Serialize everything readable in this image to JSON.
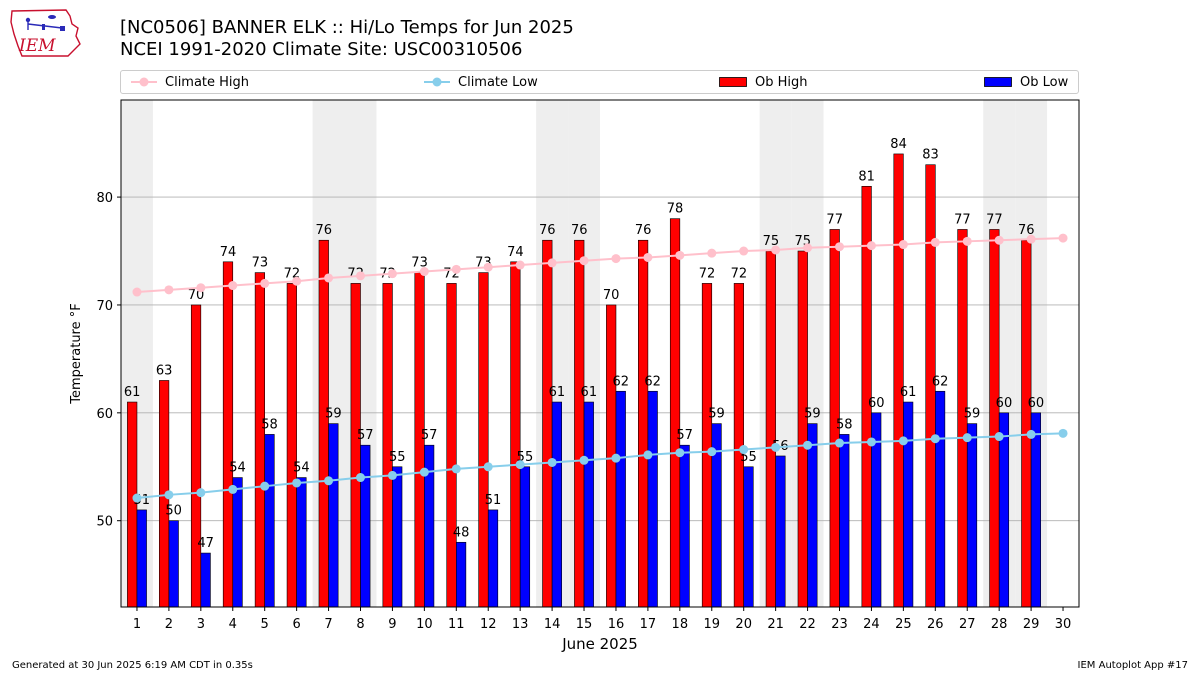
{
  "header": {
    "logo_text": "IEM",
    "title_line1": "[NC0506] BANNER ELK :: Hi/Lo Temps for Jun 2025",
    "title_line2": "NCEI 1991-2020 Climate Site: USC00310506"
  },
  "legend": {
    "climate_high": "Climate High",
    "climate_low": "Climate Low",
    "ob_high": "Ob High",
    "ob_low": "Ob Low"
  },
  "footer": {
    "generated": "Generated at 30 Jun 2025 6:19 AM CDT in 0.35s",
    "app": "IEM Autoplot App #17"
  },
  "colors": {
    "ob_high": "#ff0000",
    "ob_low": "#0000ff",
    "climate_high": "#ffc0cb",
    "climate_low": "#87ceeb",
    "weekend_shade": "#eeeeee"
  },
  "chart_data": {
    "type": "bar",
    "xlabel": "June 2025",
    "ylabel": "Temperature °F",
    "xlim": [
      0.5,
      30.5
    ],
    "ylim": [
      42,
      89
    ],
    "yticks": [
      50,
      60,
      70,
      80
    ],
    "grid": "y",
    "legend_position": "top",
    "categories": [
      "1",
      "2",
      "3",
      "4",
      "5",
      "6",
      "7",
      "8",
      "9",
      "10",
      "11",
      "12",
      "13",
      "14",
      "15",
      "16",
      "17",
      "18",
      "19",
      "20",
      "21",
      "22",
      "23",
      "24",
      "25",
      "26",
      "27",
      "28",
      "29",
      "30"
    ],
    "weekend_days": [
      1,
      7,
      8,
      14,
      15,
      21,
      22,
      28,
      29
    ],
    "series": [
      {
        "name": "Ob High",
        "type": "bar",
        "values": [
          61,
          63,
          70,
          74,
          73,
          72,
          76,
          72,
          72,
          73,
          72,
          73,
          74,
          76,
          76,
          70,
          76,
          78,
          72,
          72,
          75,
          75,
          77,
          81,
          84,
          83,
          77,
          77,
          76,
          null
        ]
      },
      {
        "name": "Ob Low",
        "type": "bar",
        "values": [
          51,
          50,
          47,
          54,
          58,
          54,
          59,
          57,
          55,
          57,
          48,
          51,
          55,
          61,
          61,
          62,
          62,
          57,
          59,
          55,
          56,
          59,
          58,
          60,
          61,
          62,
          59,
          60,
          60,
          null
        ]
      },
      {
        "name": "Climate High",
        "type": "line",
        "values": [
          71.2,
          71.4,
          71.6,
          71.8,
          72.0,
          72.2,
          72.5,
          72.7,
          72.9,
          73.1,
          73.3,
          73.5,
          73.7,
          73.9,
          74.1,
          74.3,
          74.4,
          74.6,
          74.8,
          75.0,
          75.1,
          75.3,
          75.4,
          75.5,
          75.6,
          75.8,
          75.9,
          76.0,
          76.1,
          76.2
        ]
      },
      {
        "name": "Climate Low",
        "type": "line",
        "values": [
          52.1,
          52.4,
          52.6,
          52.9,
          53.2,
          53.5,
          53.7,
          54.0,
          54.2,
          54.5,
          54.8,
          55.0,
          55.2,
          55.4,
          55.6,
          55.8,
          56.1,
          56.3,
          56.4,
          56.6,
          56.8,
          57.0,
          57.2,
          57.3,
          57.4,
          57.6,
          57.7,
          57.8,
          58.0,
          58.1
        ]
      }
    ]
  }
}
